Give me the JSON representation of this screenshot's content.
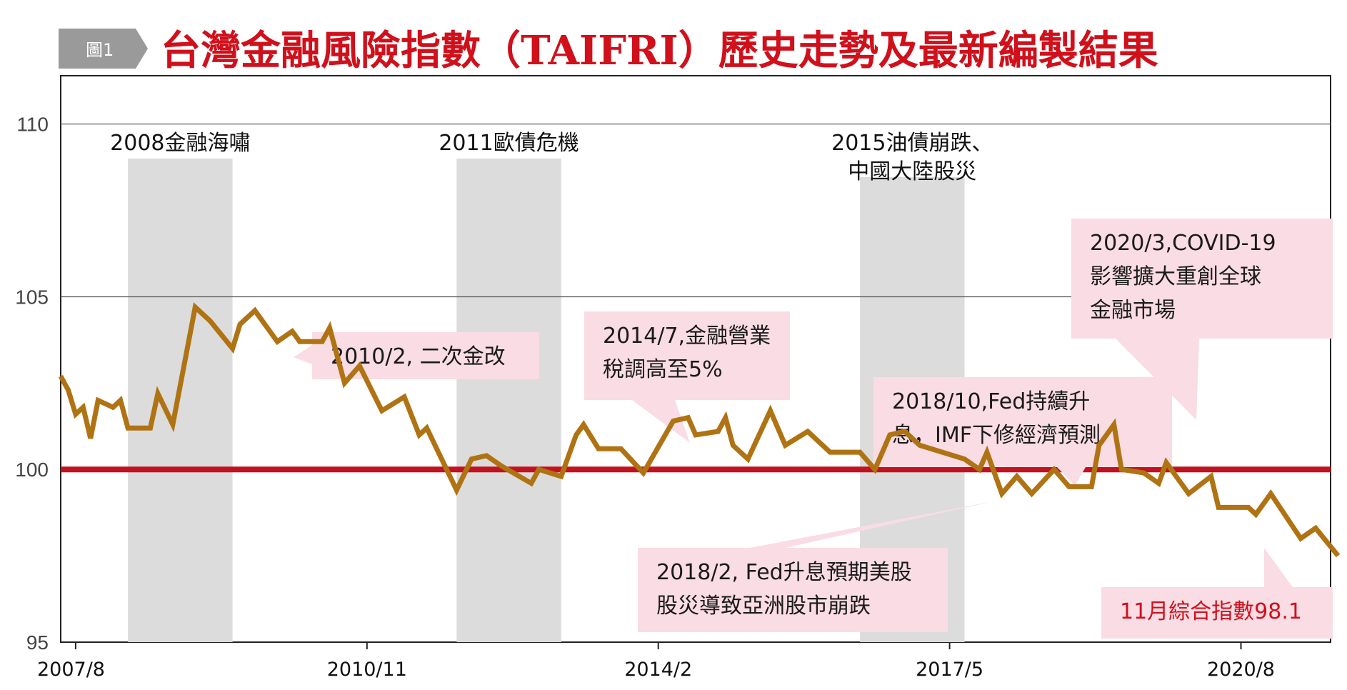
{
  "figure": {
    "badge": "圖1",
    "title": "台灣金融風險指數（TAIFRI）歷史走勢及最新編製結果"
  },
  "colors": {
    "line": "#b07313",
    "baseline": "#c1121f",
    "band": "#dcdcdc",
    "callout": "#f9dce4",
    "title": "#d0101b",
    "grid": "#555555"
  },
  "chart_data": {
    "type": "line",
    "title": "台灣金融風險指數（TAIFRI）歷史走勢及最新編製結果",
    "xlabel": "",
    "ylabel": "",
    "ylim": [
      95,
      111.4
    ],
    "xlim": [
      "2007/6",
      "2021/8"
    ],
    "yticks": [
      95,
      100,
      105,
      110
    ],
    "xticks": [
      "2007/8",
      "2010/11",
      "2014/2",
      "2017/5",
      "2020/8"
    ],
    "grid": "horizontal at 105 and 110",
    "reference_line": 100,
    "series": [
      {
        "points": [
          [
            "2007/6",
            102.7
          ],
          [
            "2007/7",
            102.3
          ],
          [
            "2007/8",
            101.6
          ],
          [
            "2007/9",
            101.8
          ],
          [
            "2007/10",
            100.9
          ],
          [
            "2007/11",
            102.0
          ],
          [
            "2008/1",
            101.8
          ],
          [
            "2008/2",
            102.0
          ],
          [
            "2008/3",
            101.2
          ],
          [
            "2008/6",
            101.2
          ],
          [
            "2008/7",
            102.2
          ],
          [
            "2008/9",
            101.3
          ],
          [
            "2008/12",
            104.7
          ],
          [
            "2009/2",
            104.3
          ],
          [
            "2009/5",
            103.5
          ],
          [
            "2009/6",
            104.2
          ],
          [
            "2009/8",
            104.6
          ],
          [
            "2009/11",
            103.7
          ],
          [
            "2010/1",
            104.0
          ],
          [
            "2010/2",
            103.7
          ],
          [
            "2010/5",
            103.7
          ],
          [
            "2010/6",
            104.1
          ],
          [
            "2010/8",
            102.5
          ],
          [
            "2010/10",
            103.0
          ],
          [
            "2011/1",
            101.7
          ],
          [
            "2011/4",
            102.1
          ],
          [
            "2011/6",
            101.0
          ],
          [
            "2011/7",
            101.2
          ],
          [
            "2011/11",
            99.4
          ],
          [
            "2012/1",
            100.3
          ],
          [
            "2012/3",
            100.4
          ],
          [
            "2012/5",
            100.1
          ],
          [
            "2012/9",
            99.6
          ],
          [
            "2012/10",
            100.0
          ],
          [
            "2013/1",
            99.8
          ],
          [
            "2013/3",
            101.0
          ],
          [
            "2013/4",
            101.3
          ],
          [
            "2013/6",
            100.6
          ],
          [
            "2013/9",
            100.6
          ],
          [
            "2013/12",
            99.9
          ],
          [
            "2014/4",
            101.4
          ],
          [
            "2014/6",
            101.5
          ],
          [
            "2014/7",
            101.0
          ],
          [
            "2014/10",
            101.1
          ],
          [
            "2014/11",
            101.5
          ],
          [
            "2014/12",
            100.7
          ],
          [
            "2015/2",
            100.3
          ],
          [
            "2015/5",
            101.7
          ],
          [
            "2015/7",
            100.7
          ],
          [
            "2015/10",
            101.1
          ],
          [
            "2016/1",
            100.5
          ],
          [
            "2016/5",
            100.5
          ],
          [
            "2016/7",
            100.0
          ],
          [
            "2016/9",
            101.0
          ],
          [
            "2016/11",
            101.1
          ],
          [
            "2017/1",
            100.7
          ],
          [
            "2017/7",
            100.3
          ],
          [
            "2017/9",
            100.0
          ],
          [
            "2017/10",
            100.5
          ],
          [
            "2017/12",
            99.3
          ],
          [
            "2018/2",
            99.8
          ],
          [
            "2018/4",
            99.3
          ],
          [
            "2018/7",
            100.0
          ],
          [
            "2018/9",
            99.5
          ],
          [
            "2018/12",
            99.5
          ],
          [
            "2019/1",
            100.7
          ],
          [
            "2019/3",
            101.3
          ],
          [
            "2019/4",
            100.0
          ],
          [
            "2019/7",
            99.9
          ],
          [
            "2019/9",
            99.6
          ],
          [
            "2019/10",
            100.2
          ],
          [
            "2020/1",
            99.3
          ],
          [
            "2020/4",
            99.8
          ],
          [
            "2020/5",
            98.9
          ],
          [
            "2020/9",
            98.9
          ],
          [
            "2020/10",
            98.7
          ],
          [
            "2020/12",
            99.3
          ],
          [
            "2021/4",
            98.0
          ],
          [
            "2021/6",
            98.3
          ],
          [
            "2021/9",
            97.5
          ]
        ]
      }
    ],
    "shaded_periods": [
      {
        "label": "2008金融海嘯",
        "start": "2008/3",
        "end": "2009/5"
      },
      {
        "label": "2011歐債危機",
        "start": "2011/11",
        "end": "2013/1"
      },
      {
        "label_lines": [
          "2015油債崩跌、",
          "中國大陸股災"
        ],
        "start": "2016/5",
        "end": "2017/7"
      }
    ],
    "annotations": [
      {
        "lines": [
          "2010/2, 二次金改"
        ]
      },
      {
        "lines": [
          "2014/7,金融營業",
          "稅調高至5%"
        ]
      },
      {
        "lines": [
          "2020/3,COVID-19",
          "影響擴大重創全球",
          "金融市場"
        ]
      },
      {
        "lines": [
          "2018/10,Fed持續升",
          "息，IMF下修經濟預測"
        ]
      },
      {
        "lines": [
          "2018/2, Fed升息預期美股",
          "股災導致亞洲股市崩跌"
        ]
      },
      {
        "lines": [
          "11月綜合指數98.1"
        ],
        "highlight": true
      }
    ]
  }
}
